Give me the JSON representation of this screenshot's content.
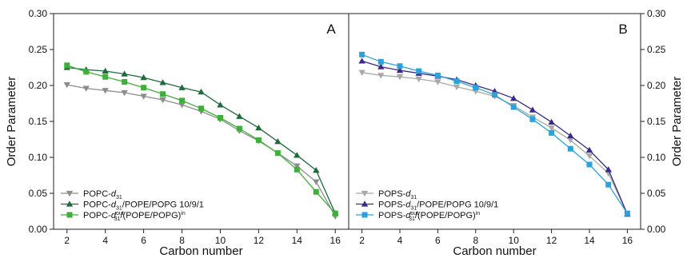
{
  "chart_data": {
    "type": "line",
    "ylim": [
      0.0,
      0.3
    ],
    "yticks": [
      "0.00",
      "0.05",
      "0.10",
      "0.15",
      "0.20",
      "0.25",
      "0.30"
    ],
    "xticks": [
      "2",
      "4",
      "6",
      "8",
      "10",
      "12",
      "14",
      "16"
    ],
    "ylabel_left": "Order Parameter",
    "ylabel_right": "Order Parameter",
    "grid": false,
    "panels": [
      {
        "id": "A",
        "label": "A",
        "xlabel": "Carbon number",
        "x": [
          2,
          3,
          4,
          5,
          6,
          7,
          8,
          9,
          10,
          11,
          12,
          13,
          14,
          15,
          16
        ],
        "legend_position": "bottom-left",
        "series": [
          {
            "legend": {
              "base": "POPC-",
              "main": "d",
              "sub": "31",
              "sup": "",
              "tail": ""
            },
            "marker": "triangle-down",
            "color": "#8c8c8c",
            "values": [
              0.201,
              0.196,
              0.193,
              0.19,
              0.185,
              0.18,
              0.173,
              0.164,
              0.153,
              0.137,
              0.123,
              0.106,
              0.088,
              0.066,
              0.018
            ]
          },
          {
            "legend": {
              "base": "POPC-",
              "main": "d",
              "sub": "31",
              "sup": "",
              "tail": "/POPE/POPG 10/9/1"
            },
            "marker": "triangle-up",
            "color": "#1d6b3b",
            "values": [
              0.225,
              0.222,
              0.22,
              0.216,
              0.211,
              0.204,
              0.197,
              0.191,
              0.173,
              0.157,
              0.141,
              0.122,
              0.103,
              0.082,
              0.022
            ]
          },
          {
            "legend": {
              "base": "POPC-",
              "main": "d",
              "sub": "31",
              "sup": "out",
              "tail": "/(POPE/POPG)",
              "tailsup": "in"
            },
            "marker": "square",
            "color": "#3fae3a",
            "values": [
              0.228,
              0.219,
              0.212,
              0.205,
              0.197,
              0.188,
              0.179,
              0.168,
              0.155,
              0.14,
              0.124,
              0.106,
              0.083,
              0.052,
              0.022
            ]
          }
        ]
      },
      {
        "id": "B",
        "label": "B",
        "xlabel": "Carbon number",
        "x": [
          2,
          3,
          4,
          5,
          6,
          7,
          8,
          9,
          10,
          11,
          12,
          13,
          14,
          15,
          16
        ],
        "legend_position": "bottom-left",
        "series": [
          {
            "legend": {
              "base": "POPS-",
              "main": "d",
              "sub": "31",
              "sup": "",
              "tail": ""
            },
            "marker": "triangle-down",
            "color": "#a8a8a8",
            "values": [
              0.218,
              0.214,
              0.212,
              0.209,
              0.205,
              0.198,
              0.192,
              0.185,
              0.172,
              0.156,
              0.141,
              0.124,
              0.102,
              0.078,
              0.021
            ]
          },
          {
            "legend": {
              "base": "POPS-",
              "main": "d",
              "sub": "31",
              "sup": "",
              "tail": "/POPE/POPG 10/9/1"
            },
            "marker": "triangle-up",
            "color": "#3b2a8a",
            "values": [
              0.234,
              0.226,
              0.221,
              0.217,
              0.213,
              0.208,
              0.2,
              0.192,
              0.182,
              0.166,
              0.149,
              0.13,
              0.11,
              0.083,
              0.021
            ]
          },
          {
            "legend": {
              "base": "POPS-",
              "main": "d",
              "sub": "31",
              "sup": "out",
              "tail": "/(POPE/POPG)",
              "tailsup": "in"
            },
            "marker": "square",
            "color": "#2aa3dc",
            "values": [
              0.243,
              0.233,
              0.227,
              0.22,
              0.214,
              0.206,
              0.197,
              0.187,
              0.17,
              0.153,
              0.134,
              0.112,
              0.09,
              0.062,
              0.022
            ]
          }
        ]
      }
    ]
  }
}
